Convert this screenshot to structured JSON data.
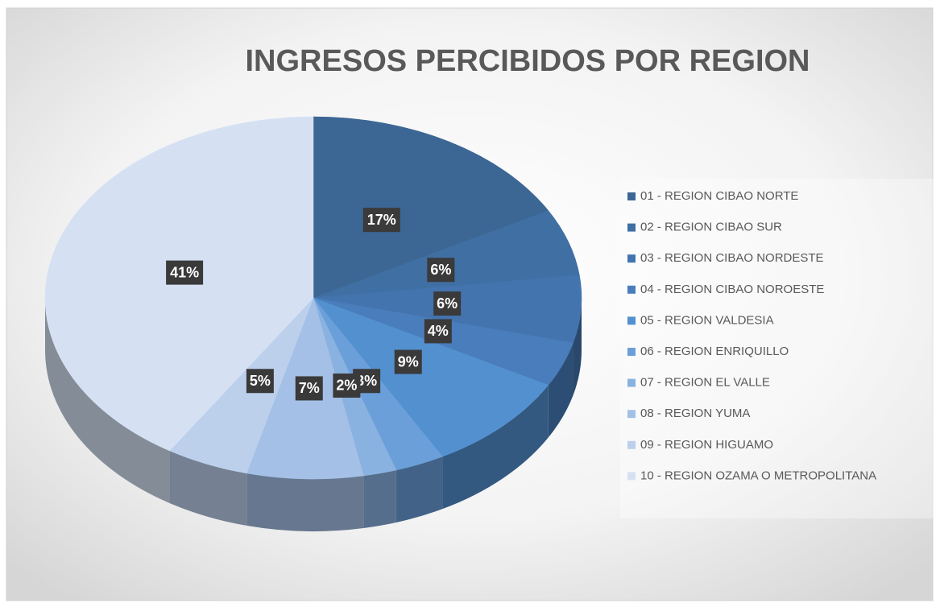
{
  "chart_data": {
    "type": "pie3d",
    "title": "INGRESOS PERCIBIDOS POR REGION",
    "categories": [
      "01 - REGION CIBAO NORTE",
      "02 - REGION CIBAO SUR",
      "03 - REGION CIBAO NORDESTE",
      "04 - REGION CIBAO NOROESTE",
      "05 - REGION VALDESIA",
      "06 - REGION ENRIQUILLO",
      "07 - REGION EL VALLE",
      "08 - REGION YUMA",
      "09 - REGION HIGUAMO",
      "10 - REGION OZAMA O METROPOLITANA"
    ],
    "values": [
      17,
      6,
      6,
      4,
      9,
      3,
      2,
      7,
      5,
      41
    ],
    "value_labels": [
      "17%",
      "6%",
      "6%",
      "4%",
      "9%",
      "3%",
      "2%",
      "7%",
      "5%",
      "41%"
    ],
    "colors": [
      "#3c6694",
      "#3f6fa3",
      "#4374ae",
      "#497dbb",
      "#5390cf",
      "#6a9fd9",
      "#89b2e0",
      "#a4c0e6",
      "#bcd0ec",
      "#d5e1f3"
    ],
    "legend": "right"
  }
}
